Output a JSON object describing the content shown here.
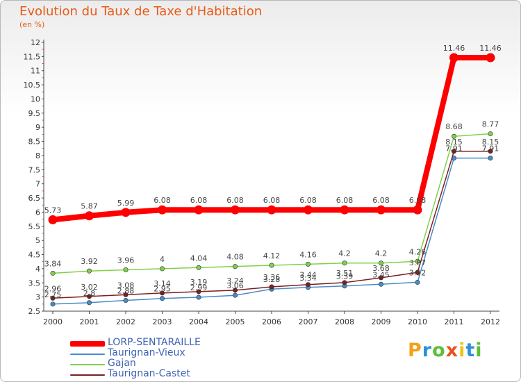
{
  "chart_data": {
    "type": "line",
    "title": "Evolution du Taux de Taxe d'Habitation",
    "subtitle": "(en %)",
    "xlabel": "",
    "ylabel": "",
    "x": [
      "2000",
      "2001",
      "2002",
      "2003",
      "2004",
      "2005",
      "2006",
      "2007",
      "2008",
      "2009",
      "2010",
      "2011",
      "2012"
    ],
    "ylim": [
      2.5,
      12
    ],
    "yticks": [
      "2.5",
      "3",
      "3.5",
      "4",
      "4.5",
      "5",
      "5.5",
      "6",
      "6.5",
      "7",
      "7.5",
      "8",
      "8.5",
      "9",
      "9.5",
      "10",
      "10.5",
      "11",
      "11.5",
      "12"
    ],
    "grid": false,
    "legend_position": "bottom-left",
    "series": [
      {
        "name": "LORP-SENTARAILLE",
        "color": "#ff0000",
        "labels": [
          "5.73",
          "5.87",
          "5.99",
          "6.08",
          "6.08",
          "6.08",
          "6.08",
          "6.08",
          "6.08",
          "6.08",
          "6.08",
          "11.46",
          "11.46"
        ],
        "values": [
          5.73,
          5.87,
          5.99,
          6.08,
          6.08,
          6.08,
          6.08,
          6.08,
          6.08,
          6.08,
          6.08,
          11.46,
          11.46
        ]
      },
      {
        "name": "Taurignan-Vieux",
        "color": "#4a8ac8",
        "labels": [
          "2.75",
          "2.8",
          "2.88",
          "2.95",
          "2.99",
          "3.06",
          "3.28",
          "3.34",
          "3.39",
          "3.45",
          "3.52",
          "7.91",
          "7.91"
        ],
        "values": [
          2.75,
          2.8,
          2.88,
          2.95,
          2.99,
          3.06,
          3.28,
          3.34,
          3.39,
          3.45,
          3.52,
          7.91,
          7.91
        ]
      },
      {
        "name": "Gajan",
        "color": "#7fd14a",
        "labels": [
          "3.84",
          "3.92",
          "3.96",
          "4",
          "4.04",
          "4.08",
          "4.12",
          "4.16",
          "4.2",
          "4.2",
          "4.26",
          "8.68",
          "8.77"
        ],
        "values": [
          3.84,
          3.92,
          3.96,
          4,
          4.04,
          4.08,
          4.12,
          4.16,
          4.2,
          4.2,
          4.26,
          8.68,
          8.77
        ]
      },
      {
        "name": "Taurignan-Castet",
        "color": "#7a2020",
        "labels": [
          "2.96",
          "3.02",
          "3.08",
          "3.14",
          "3.19",
          "3.24",
          "3.36",
          "3.44",
          "3.51",
          "3.68",
          "3.87",
          "8.15",
          "8.15"
        ],
        "values": [
          2.96,
          3.02,
          3.08,
          3.14,
          3.19,
          3.24,
          3.36,
          3.44,
          3.51,
          3.68,
          3.87,
          8.15,
          8.15
        ]
      }
    ]
  },
  "brand": {
    "text": "Proxiti",
    "colors": [
      "#f2a01c",
      "#2f8fd8",
      "#5cbf3a",
      "#e8531c",
      "#f2c21c",
      "#2f8fd8",
      "#5cbf3a"
    ]
  }
}
